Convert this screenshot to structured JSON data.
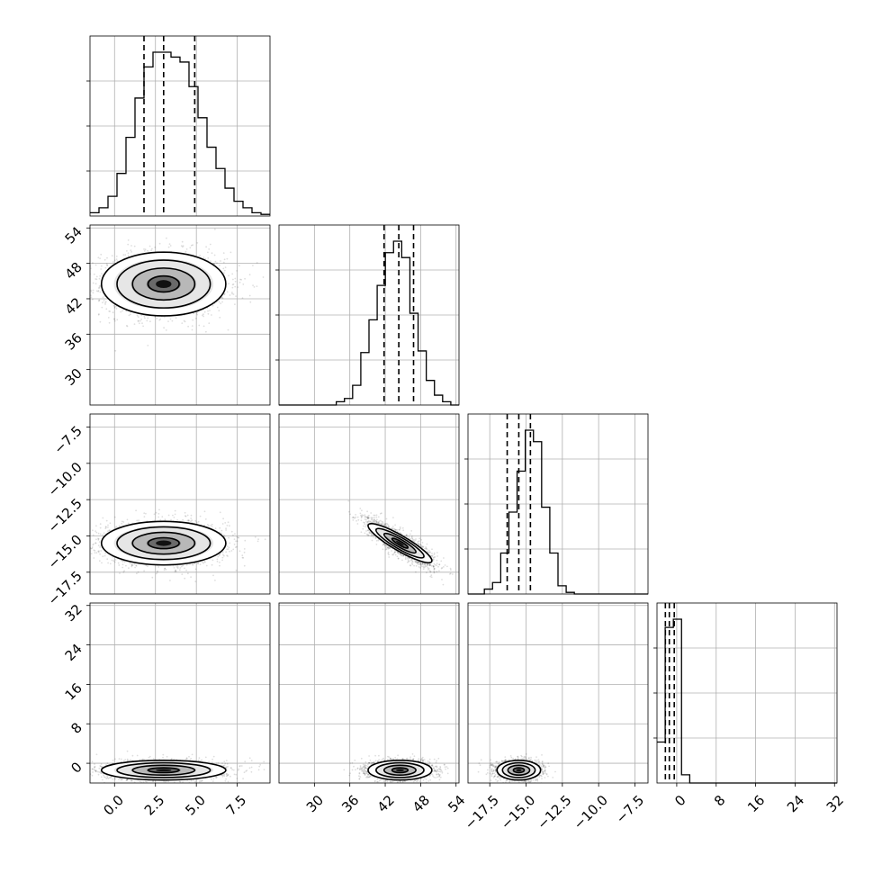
{
  "chart_data": {
    "type": "corner",
    "grid": true,
    "color": "#000000",
    "params": [
      {
        "id": "p0",
        "range": [
          -1.5,
          9.5
        ],
        "ticks": [
          0.0,
          2.5,
          5.0,
          7.5
        ],
        "tick_labels": [
          "0.0",
          "2.5",
          "5.0",
          "7.5"
        ],
        "quantiles": [
          1.8,
          3.0,
          4.9
        ],
        "mean": 3.0,
        "sigma": 1.9,
        "hist_counts": [
          0.02,
          0.05,
          0.12,
          0.26,
          0.48,
          0.72,
          0.91,
          1.0,
          1.0,
          0.97,
          0.94,
          0.79,
          0.6,
          0.42,
          0.29,
          0.17,
          0.09,
          0.05,
          0.02,
          0.01
        ]
      },
      {
        "id": "p1",
        "range": [
          24,
          54.5
        ],
        "ticks": [
          30,
          36,
          42,
          48,
          54
        ],
        "tick_labels": [
          "30",
          "36",
          "42",
          "48",
          "54"
        ],
        "left_ticks": [
          30,
          36,
          42,
          48,
          54
        ],
        "left_tick_labels": [
          "30",
          "36",
          "42",
          "48",
          "54"
        ],
        "quantiles": [
          41.8,
          44.3,
          46.8
        ],
        "mean": 44.5,
        "sigma": 2.7,
        "hist_counts": [
          0.0,
          0.0,
          0.0,
          0.0,
          0.0,
          0.0,
          0.0,
          0.02,
          0.04,
          0.12,
          0.32,
          0.52,
          0.73,
          0.93,
          1.0,
          0.9,
          0.56,
          0.33,
          0.15,
          0.06,
          0.02,
          0.0
        ]
      },
      {
        "id": "p2",
        "range": [
          -19,
          -6.6
        ],
        "ticks": [
          -17.5,
          -15.0,
          -12.5,
          -10.0,
          -7.5
        ],
        "tick_labels": [
          "−17.5",
          "−15.0",
          "−12.5",
          "−10.0",
          "−7.5"
        ],
        "left_ticks": [
          -17.5,
          -15.0,
          -12.5,
          -10.0,
          -7.5
        ],
        "left_tick_labels": [
          "−17.5",
          "−15.0",
          "−12.5",
          "−10.0",
          "−7.5"
        ],
        "quantiles": [
          -16.3,
          -15.5,
          -14.7
        ],
        "mean": -15.5,
        "sigma": 0.75,
        "hist_counts": [
          0.0,
          0.0,
          0.03,
          0.07,
          0.25,
          0.5,
          0.75,
          1.0,
          0.93,
          0.53,
          0.25,
          0.05,
          0.01,
          0.0,
          0.0,
          0.0,
          0.0,
          0.0,
          0.0,
          0.0,
          0.0,
          0.0
        ]
      },
      {
        "id": "p3",
        "range": [
          -4,
          32.5
        ],
        "ticks": [
          0,
          8,
          16,
          24,
          32
        ],
        "tick_labels": [
          "0",
          "8",
          "16",
          "24",
          "32"
        ],
        "left_ticks": [
          0,
          8,
          16,
          24,
          32
        ],
        "left_tick_labels": [
          "0",
          "8",
          "16",
          "24",
          "32"
        ],
        "quantiles": [
          -2.3,
          -1.5,
          -0.5
        ],
        "mean": -1.4,
        "sigma": 1.0,
        "hist_counts": [
          0.25,
          0.95,
          1.0,
          0.05,
          0.0,
          0.0,
          0.0,
          0.0,
          0.0,
          0.0,
          0.0,
          0.0,
          0.0,
          0.0,
          0.0,
          0.0,
          0.0,
          0.0,
          0.0,
          0.0,
          0.0,
          0.0
        ]
      }
    ],
    "pairs": [
      {
        "x": "p0",
        "y": "p1",
        "correlation": 0.0
      },
      {
        "x": "p0",
        "y": "p2",
        "correlation": 0.0
      },
      {
        "x": "p1",
        "y": "p2",
        "correlation": -0.85
      },
      {
        "x": "p0",
        "y": "p3",
        "correlation": 0.0
      },
      {
        "x": "p1",
        "y": "p3",
        "correlation": 0.0
      },
      {
        "x": "p2",
        "y": "p3",
        "correlation": 0.0
      }
    ]
  }
}
